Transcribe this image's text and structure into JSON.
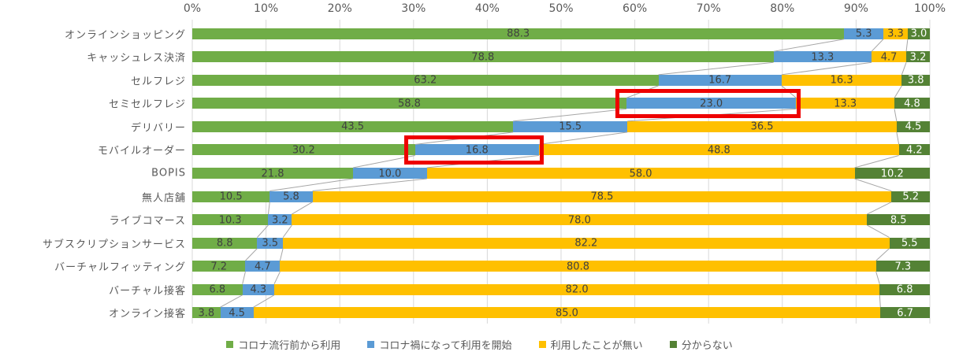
{
  "chart_data": {
    "type": "bar",
    "orientation": "horizontal-stacked-100",
    "title": "",
    "categories": [
      "オンラインショッピング",
      "キャッシュレス決済",
      "セルフレジ",
      "セミセルフレジ",
      "デリバリー",
      "モバイルオーダー",
      "BOPIS",
      "無人店舗",
      "ライブコマース",
      "サブスクリプションサービス",
      "バーチャルフィッティング",
      "バーチャル接客",
      "オンライン接客"
    ],
    "series": [
      {
        "name": "コロナ流行前から利用",
        "color": "#70AD47",
        "values": [
          88.3,
          78.8,
          63.2,
          58.8,
          43.5,
          30.2,
          21.8,
          10.5,
          10.3,
          8.8,
          7.2,
          6.8,
          3.8
        ]
      },
      {
        "name": "コロナ禍になって利用を開始",
        "color": "#5B9BD5",
        "values": [
          5.3,
          13.3,
          16.7,
          23.0,
          15.5,
          16.8,
          10.0,
          5.8,
          3.2,
          3.5,
          4.7,
          4.3,
          4.5
        ]
      },
      {
        "name": "利用したことが無い",
        "color": "#FFC000",
        "values": [
          3.3,
          4.7,
          16.3,
          13.3,
          36.5,
          48.8,
          58.0,
          78.5,
          78.0,
          82.2,
          80.8,
          82.0,
          85.0
        ]
      },
      {
        "name": "分からない",
        "color": "#548235",
        "values": [
          3.0,
          3.2,
          3.8,
          4.8,
          4.5,
          4.2,
          10.2,
          5.2,
          8.5,
          5.5,
          7.3,
          6.8,
          6.7
        ]
      }
    ],
    "x_axis": {
      "min": 0,
      "max": 100,
      "tick_labels": [
        "0%",
        "10%",
        "20%",
        "30%",
        "40%",
        "50%",
        "60%",
        "70%",
        "80%",
        "90%",
        "100%"
      ],
      "grid": true
    },
    "legend": {
      "position": "bottom",
      "entries": [
        "コロナ流行前から利用",
        "コロナ禍になって利用を開始",
        "利用したことが無い",
        "分からない"
      ]
    },
    "annotations": [
      {
        "type": "highlight-box",
        "category": "セミセルフレジ",
        "series": "コロナ禍になって利用を開始",
        "value": 23.0
      },
      {
        "type": "highlight-box",
        "category": "モバイルオーダー",
        "series": "コロナ禍になって利用を開始",
        "value": 16.8
      }
    ],
    "styles": {
      "gridline_color": "#D9D9D9",
      "connector_line_color": "#A6A6A6",
      "tick_label_color": "#595959",
      "category_label_color": "#595959",
      "value_label_color": "#404040",
      "value_label_color_on_dark": "#FFFFFF",
      "highlight_color": "#EE0000",
      "background": "#FFFFFF"
    }
  }
}
